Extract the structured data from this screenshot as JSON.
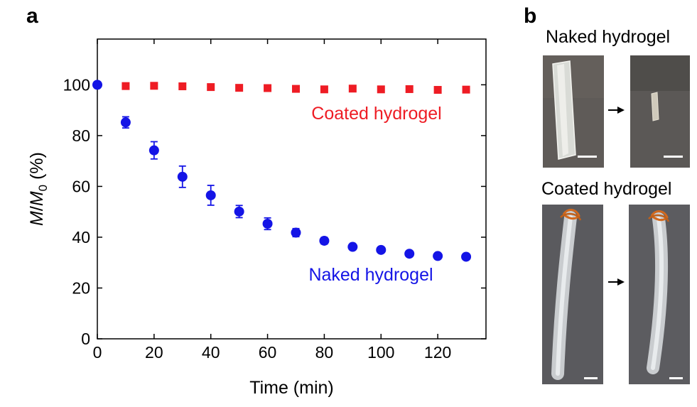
{
  "panels": {
    "a": "a",
    "b": "b"
  },
  "chart_data": {
    "type": "scatter",
    "xlabel": "Time (min)",
    "ylabel_parts": [
      "M",
      "/",
      "M",
      "0",
      " (%)"
    ],
    "xlim": [
      0,
      137
    ],
    "ylim": [
      0,
      118
    ],
    "xticks": [
      0,
      20,
      40,
      60,
      80,
      100,
      120
    ],
    "yticks": [
      0,
      20,
      40,
      60,
      80,
      100
    ],
    "grid": false,
    "series": [
      {
        "name": "Coated hydrogel",
        "marker": "square",
        "color": "#ee1c24",
        "x": [
          10,
          20,
          30,
          40,
          50,
          60,
          70,
          80,
          90,
          100,
          110,
          120,
          130
        ],
        "y": [
          99.5,
          99.6,
          99.4,
          99.1,
          98.8,
          98.7,
          98.4,
          98.2,
          98.5,
          98.2,
          98.3,
          98.0,
          98.1
        ]
      },
      {
        "name": "Naked hydrogel",
        "marker": "circle",
        "color": "#1414e6",
        "x": [
          0,
          10,
          20,
          30,
          40,
          50,
          60,
          70,
          80,
          90,
          100,
          110,
          120,
          130
        ],
        "y": [
          100,
          85.2,
          74.2,
          63.8,
          56.5,
          50.1,
          45.3,
          41.8,
          38.6,
          36.2,
          35.0,
          33.5,
          32.6,
          32.3
        ],
        "err": [
          0,
          2.2,
          3.4,
          4.2,
          3.9,
          2.4,
          2.3,
          1.6,
          1.3,
          0.9,
          0.7,
          0.6,
          0.6,
          0.6
        ]
      }
    ]
  },
  "photos": {
    "naked_title": "Naked hydrogel",
    "coated_title": "Coated hydrogel"
  },
  "colors": {
    "photo_bg_naked": "#5f5b58",
    "photo_bg_coated": "#5a5a5e",
    "arrow": "#000000"
  }
}
